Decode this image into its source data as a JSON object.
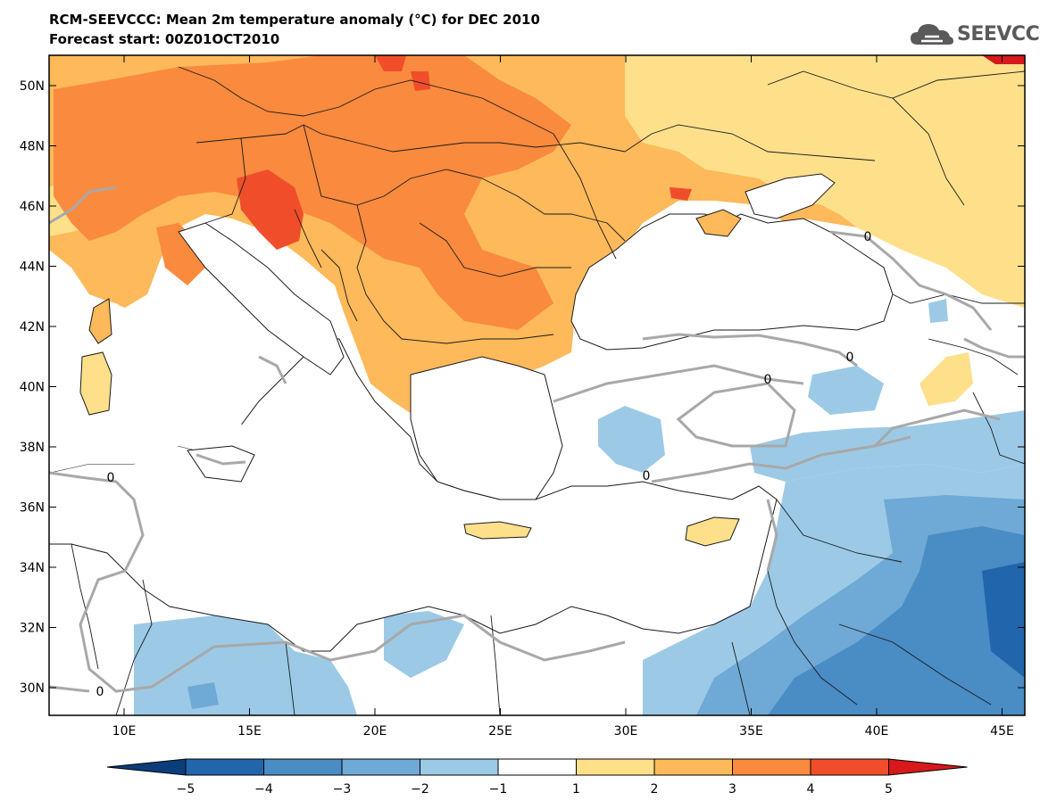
{
  "header": {
    "title": "RCM-SEEVCCC: Mean 2m temperature anomaly (°C) for DEC 2010",
    "subtitle": "Forecast start: 00Z01OCT2010"
  },
  "logo": {
    "text": "SEEVCCC",
    "icon": "cloud-logo-icon"
  },
  "map": {
    "lat_ticks": [
      "50N",
      "48N",
      "46N",
      "44N",
      "42N",
      "40N",
      "38N",
      "36N",
      "34N",
      "32N",
      "30N"
    ],
    "lon_ticks": [
      "10E",
      "15E",
      "20E",
      "25E",
      "30E",
      "35E",
      "40E",
      "45E"
    ],
    "contour_label": "0"
  },
  "colorbar": {
    "labels": [
      "−5",
      "−4",
      "−3",
      "−2",
      "−1",
      "1",
      "2",
      "3",
      "4",
      "5"
    ],
    "colors": [
      "#0b3d7a",
      "#2166ac",
      "#4a8cc4",
      "#6fa9d6",
      "#9ccae6",
      "#ffffff",
      "#fee08b",
      "#fdb95a",
      "#f98a3e",
      "#f04e2a",
      "#d7191c"
    ]
  },
  "palette": {
    "warm1": "#fee08b",
    "warm2": "#fdb95a",
    "warm3": "#f98a3e",
    "warm4": "#f04e2a",
    "warm5": "#d7191c",
    "cool1": "#9ccae6",
    "cool2": "#6fa9d6",
    "cool3": "#4a8cc4",
    "cool4": "#2166ac",
    "cool5": "#0b3d7a",
    "neutral": "#ffffff",
    "contour": "#a8a8a8",
    "border": "#1a1a1a"
  }
}
